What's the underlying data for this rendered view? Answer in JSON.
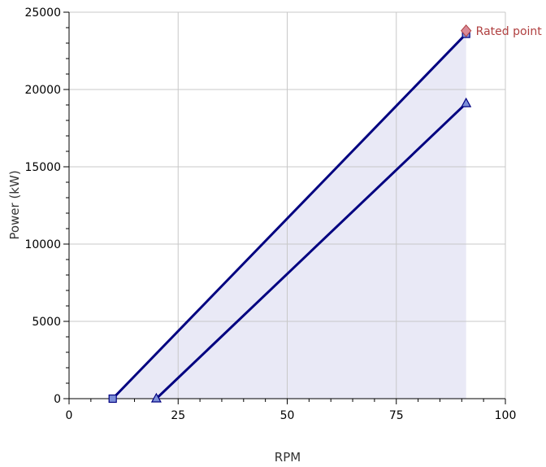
{
  "chart_data": {
    "type": "line",
    "title": "",
    "xlabel": "RPM",
    "ylabel": "Power (kW)",
    "xlim": [
      0,
      100
    ],
    "ylim": [
      0,
      25000
    ],
    "x_ticks": [
      "0",
      "25",
      "50",
      "75",
      "100"
    ],
    "y_ticks": [
      "0",
      "5000",
      "10000",
      "15000",
      "20000",
      "25000"
    ],
    "grid": true,
    "series": [
      {
        "marker": "square",
        "points": [
          [
            10,
            0
          ],
          [
            91,
            23600
          ]
        ]
      },
      {
        "marker": "triangle",
        "points": [
          [
            20,
            0
          ],
          [
            91,
            19100
          ]
        ]
      }
    ],
    "shaded_region": {
      "x_start": 10,
      "x_end": 91
    },
    "annotation": {
      "text": "Rated point",
      "x": 91,
      "y": 23800,
      "marker": "diamond"
    },
    "colors": {
      "line": "#000080",
      "marker_fill": "#7c8fd8",
      "shade": "#e9e9f6",
      "grid": "#c8c8c8",
      "annotation": "#b04040",
      "annotation_marker": "#d98a98"
    }
  }
}
